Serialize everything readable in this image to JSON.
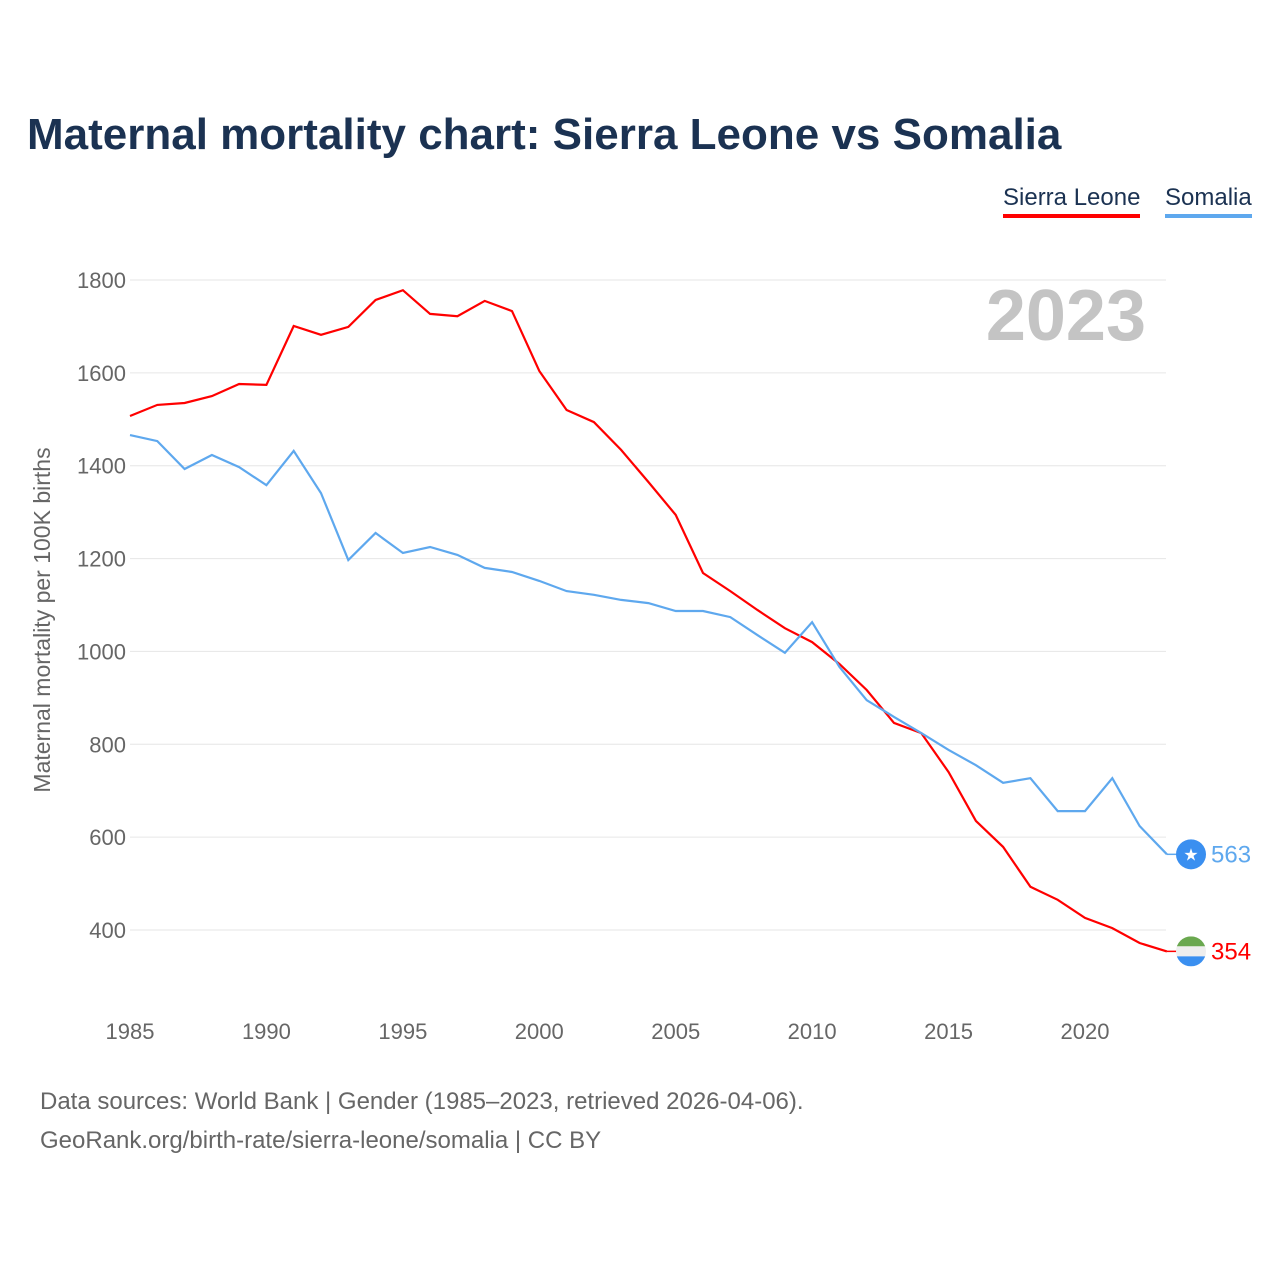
{
  "chart_data": {
    "type": "line",
    "title": "Maternal mortality chart: Sierra Leone vs Somalia",
    "ylabel": "Maternal mortality per 100K births",
    "xlabel": "",
    "year_label": "2023",
    "ylim": [
      280,
      1840
    ],
    "xlim": [
      1985,
      2023
    ],
    "yticks": [
      400,
      600,
      800,
      1000,
      1200,
      1400,
      1600,
      1800
    ],
    "xticks": [
      1985,
      1990,
      1995,
      2000,
      2005,
      2010,
      2015,
      2020
    ],
    "grid": true,
    "legend_placement": "top-right",
    "x": [
      1985,
      1986,
      1987,
      1988,
      1989,
      1990,
      1991,
      1992,
      1993,
      1994,
      1995,
      1996,
      1997,
      1998,
      1999,
      2000,
      2001,
      2002,
      2003,
      2004,
      2005,
      2006,
      2007,
      2008,
      2009,
      2010,
      2011,
      2012,
      2013,
      2014,
      2015,
      2016,
      2017,
      2018,
      2019,
      2020,
      2021,
      2022,
      2023
    ],
    "series": [
      {
        "name": "Sierra Leone",
        "color": "#ff0000",
        "end_label": "354",
        "values": [
          1507,
          1531,
          1535,
          1550,
          1576,
          1574,
          1701,
          1682,
          1699,
          1757,
          1778,
          1727,
          1722,
          1755,
          1733,
          1604,
          1520,
          1494,
          1434,
          1365,
          1294,
          1169,
          1130,
          1089,
          1050,
          1020,
          973,
          917,
          846,
          824,
          740,
          635,
          579,
          493,
          465,
          426,
          404,
          372,
          354
        ]
      },
      {
        "name": "Somalia",
        "color": "#5ea8ee",
        "end_label": "563",
        "values": [
          1466,
          1453,
          1393,
          1423,
          1397,
          1358,
          1432,
          1341,
          1197,
          1255,
          1212,
          1225,
          1208,
          1180,
          1171,
          1152,
          1130,
          1122,
          1111,
          1104,
          1087,
          1087,
          1074,
          1035,
          997,
          1063,
          967,
          895,
          859,
          824,
          788,
          755,
          717,
          727,
          656,
          656,
          727,
          624,
          563
        ]
      }
    ]
  },
  "footer": {
    "line1": "Data sources: World Bank | Gender (1985–2023, retrieved 2026-04-06).",
    "line2": "GeoRank.org/birth-rate/sierra-leone/somalia | CC BY"
  }
}
